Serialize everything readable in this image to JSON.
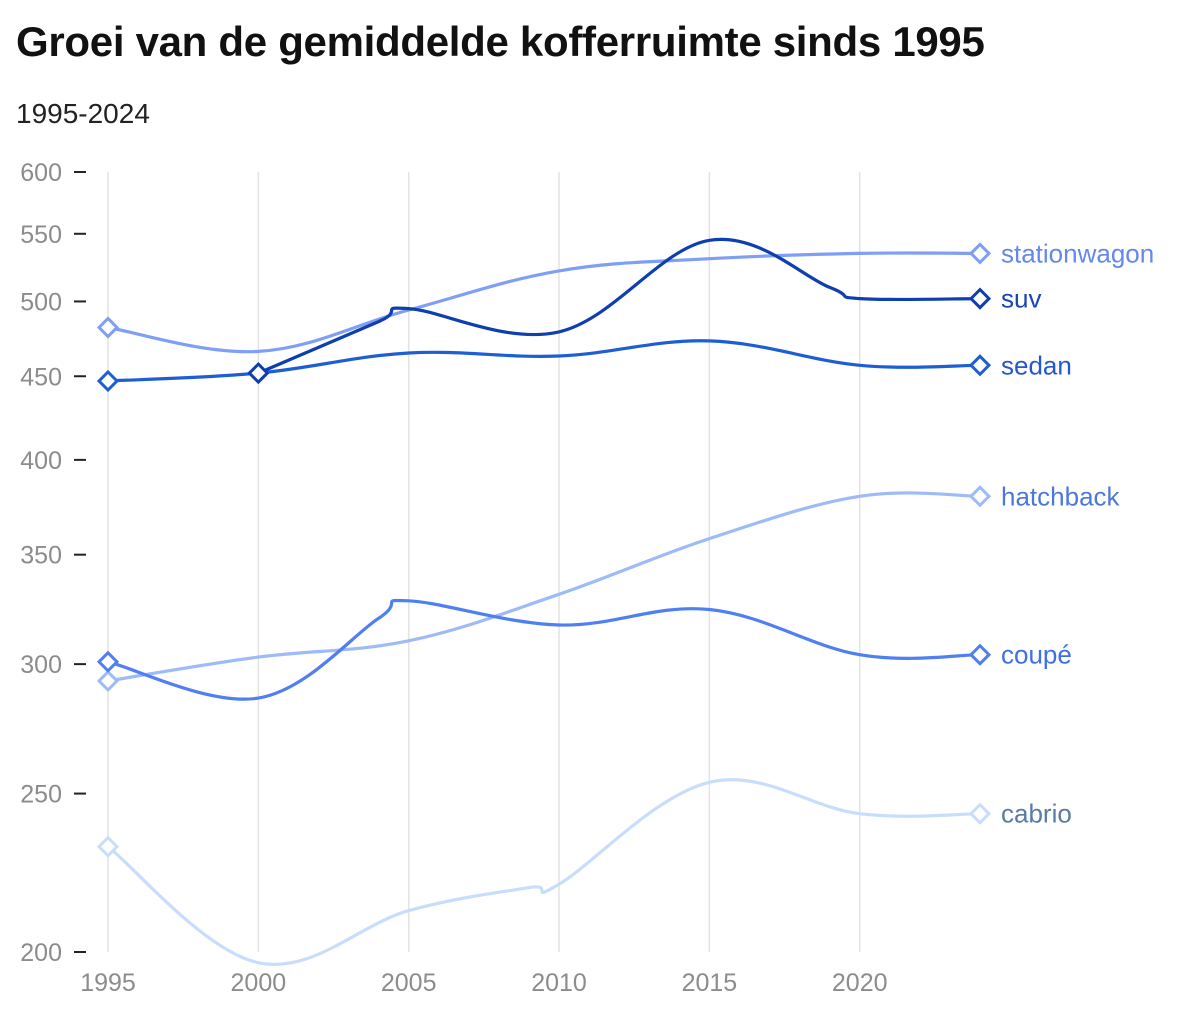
{
  "header": {
    "title": "Groei van de gemiddelde kofferruimte sinds 1995",
    "subtitle": "1995-2024"
  },
  "chart_data": {
    "type": "line",
    "title": "Groei van de gemiddelde kofferruimte sinds 1995",
    "subtitle": "1995-2024",
    "xlabel": "",
    "ylabel": "",
    "x_ticks": [
      1995,
      2000,
      2005,
      2010,
      2015,
      2020
    ],
    "y_ticks": [
      200,
      250,
      300,
      350,
      400,
      450,
      500,
      550,
      600
    ],
    "xlim": [
      1995,
      2024
    ],
    "ylim": [
      200,
      600
    ],
    "y_scale": "log",
    "grid": "vertical",
    "legend": "labels at line ends (right)",
    "series": [
      {
        "name": "stationwagon",
        "color": "#7f9ef5",
        "label_color": "#6488ec",
        "points": [
          [
            1995,
            482
          ],
          [
            2000,
            466
          ],
          [
            2005,
            494
          ],
          [
            2010,
            522
          ],
          [
            2015,
            531
          ],
          [
            2020,
            535
          ],
          [
            2024,
            535
          ]
        ]
      },
      {
        "name": "suv",
        "color": "#0f3fae",
        "label_color": "#1a44b3",
        "points": [
          [
            2000,
            452
          ],
          [
            2004,
            486
          ],
          [
            2005,
            495
          ],
          [
            2010,
            479
          ],
          [
            2015,
            545
          ],
          [
            2019,
            510
          ],
          [
            2020,
            502
          ],
          [
            2024,
            502
          ]
        ]
      },
      {
        "name": "sedan",
        "color": "#1e5ed4",
        "label_color": "#2459cc",
        "points": [
          [
            1995,
            447
          ],
          [
            2000,
            452
          ],
          [
            2005,
            465
          ],
          [
            2010,
            463
          ],
          [
            2015,
            473
          ],
          [
            2020,
            457
          ],
          [
            2024,
            457
          ]
        ]
      },
      {
        "name": "hatchback",
        "color": "#9ebbf7",
        "label_color": "#4c79d9",
        "points": [
          [
            1995,
            293
          ],
          [
            2000,
            303
          ],
          [
            2005,
            310
          ],
          [
            2010,
            331
          ],
          [
            2015,
            358
          ],
          [
            2020,
            380
          ],
          [
            2024,
            380
          ]
        ]
      },
      {
        "name": "coupé",
        "color": "#4f7ff0",
        "label_color": "#3d6fe6",
        "points": [
          [
            1995,
            301
          ],
          [
            2000,
            286
          ],
          [
            2004,
            320
          ],
          [
            2005,
            328
          ],
          [
            2010,
            317
          ],
          [
            2015,
            324
          ],
          [
            2020,
            304
          ],
          [
            2024,
            304
          ]
        ]
      },
      {
        "name": "cabrio",
        "color": "#c8ddfc",
        "label_color": "#5a7aa8",
        "points": [
          [
            1995,
            232
          ],
          [
            2000,
            197
          ],
          [
            2005,
            212
          ],
          [
            2009,
            219
          ],
          [
            2010,
            220
          ],
          [
            2015,
            254
          ],
          [
            2020,
            243
          ],
          [
            2024,
            243
          ]
        ]
      }
    ]
  }
}
